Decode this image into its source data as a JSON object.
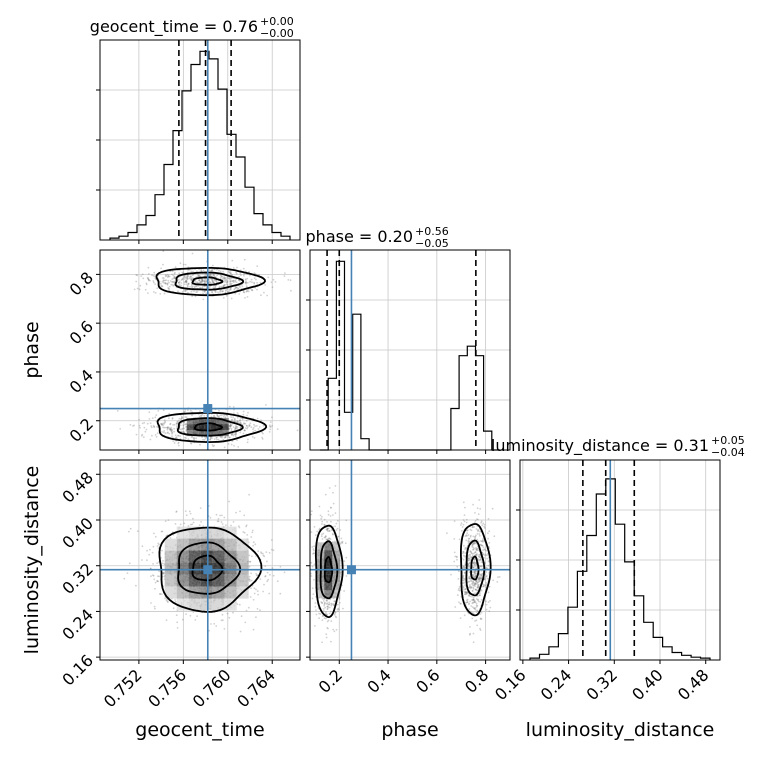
{
  "chart_data": {
    "type": "corner",
    "colors": {
      "truth": "#4682b4",
      "hist": "#000000",
      "grid": "#c8c8c8",
      "points": "#7a7a7a"
    },
    "parameters": [
      {
        "name": "geocent_time",
        "label": "geocent_time",
        "range": [
          0.7485,
          0.7665
        ],
        "ticks": [
          "0.752",
          "0.756",
          "0.760",
          "0.764"
        ],
        "tick_values": [
          0.752,
          0.756,
          0.76,
          0.764
        ],
        "truth": 0.7582,
        "title": {
          "main": "geocent_time = 0.76",
          "up": "+0.00",
          "down": "−0.00"
        },
        "quantiles": [
          0.7556,
          0.758,
          0.7603
        ],
        "hist": [
          0.01,
          0.02,
          0.04,
          0.08,
          0.13,
          0.24,
          0.4,
          0.58,
          0.79,
          0.93,
          1.0,
          0.96,
          0.8,
          0.56,
          0.44,
          0.28,
          0.14,
          0.08,
          0.04,
          0.02
        ]
      },
      {
        "name": "phase",
        "label": "phase",
        "range": [
          0.08,
          0.9
        ],
        "ticks": [
          "0.2",
          "0.4",
          "0.6",
          "0.8"
        ],
        "tick_values": [
          0.2,
          0.4,
          0.6,
          0.8
        ],
        "truth": 0.25,
        "title": {
          "main": "phase = 0.20",
          "up": "+0.56",
          "down": "−0.05"
        },
        "quantiles": [
          0.15,
          0.2,
          0.76
        ],
        "hist": [
          0.0,
          0.38,
          1.0,
          0.2,
          0.72,
          0.06,
          0.0,
          0.0,
          0.0,
          0.0,
          0.0,
          0.0,
          0.0,
          0.0,
          0.0,
          0.0,
          0.22,
          0.5,
          0.55,
          0.5,
          0.1,
          0.0
        ]
      },
      {
        "name": "luminosity_distance",
        "label": "luminosity_distance",
        "range": [
          0.155,
          0.505
        ],
        "ticks": [
          "0.16",
          "0.24",
          "0.32",
          "0.40",
          "0.48"
        ],
        "tick_values": [
          0.16,
          0.24,
          0.32,
          0.4,
          0.48
        ],
        "truth": 0.313,
        "title": {
          "main": "luminosity_distance = 0.31",
          "up": "+0.05",
          "down": "−0.04"
        },
        "quantiles": [
          0.265,
          0.305,
          0.355
        ],
        "hist": [
          0.01,
          0.03,
          0.07,
          0.14,
          0.28,
          0.47,
          0.66,
          0.88,
          0.96,
          0.72,
          0.52,
          0.34,
          0.2,
          0.12,
          0.07,
          0.04,
          0.025,
          0.015,
          0.01
        ]
      }
    ]
  }
}
